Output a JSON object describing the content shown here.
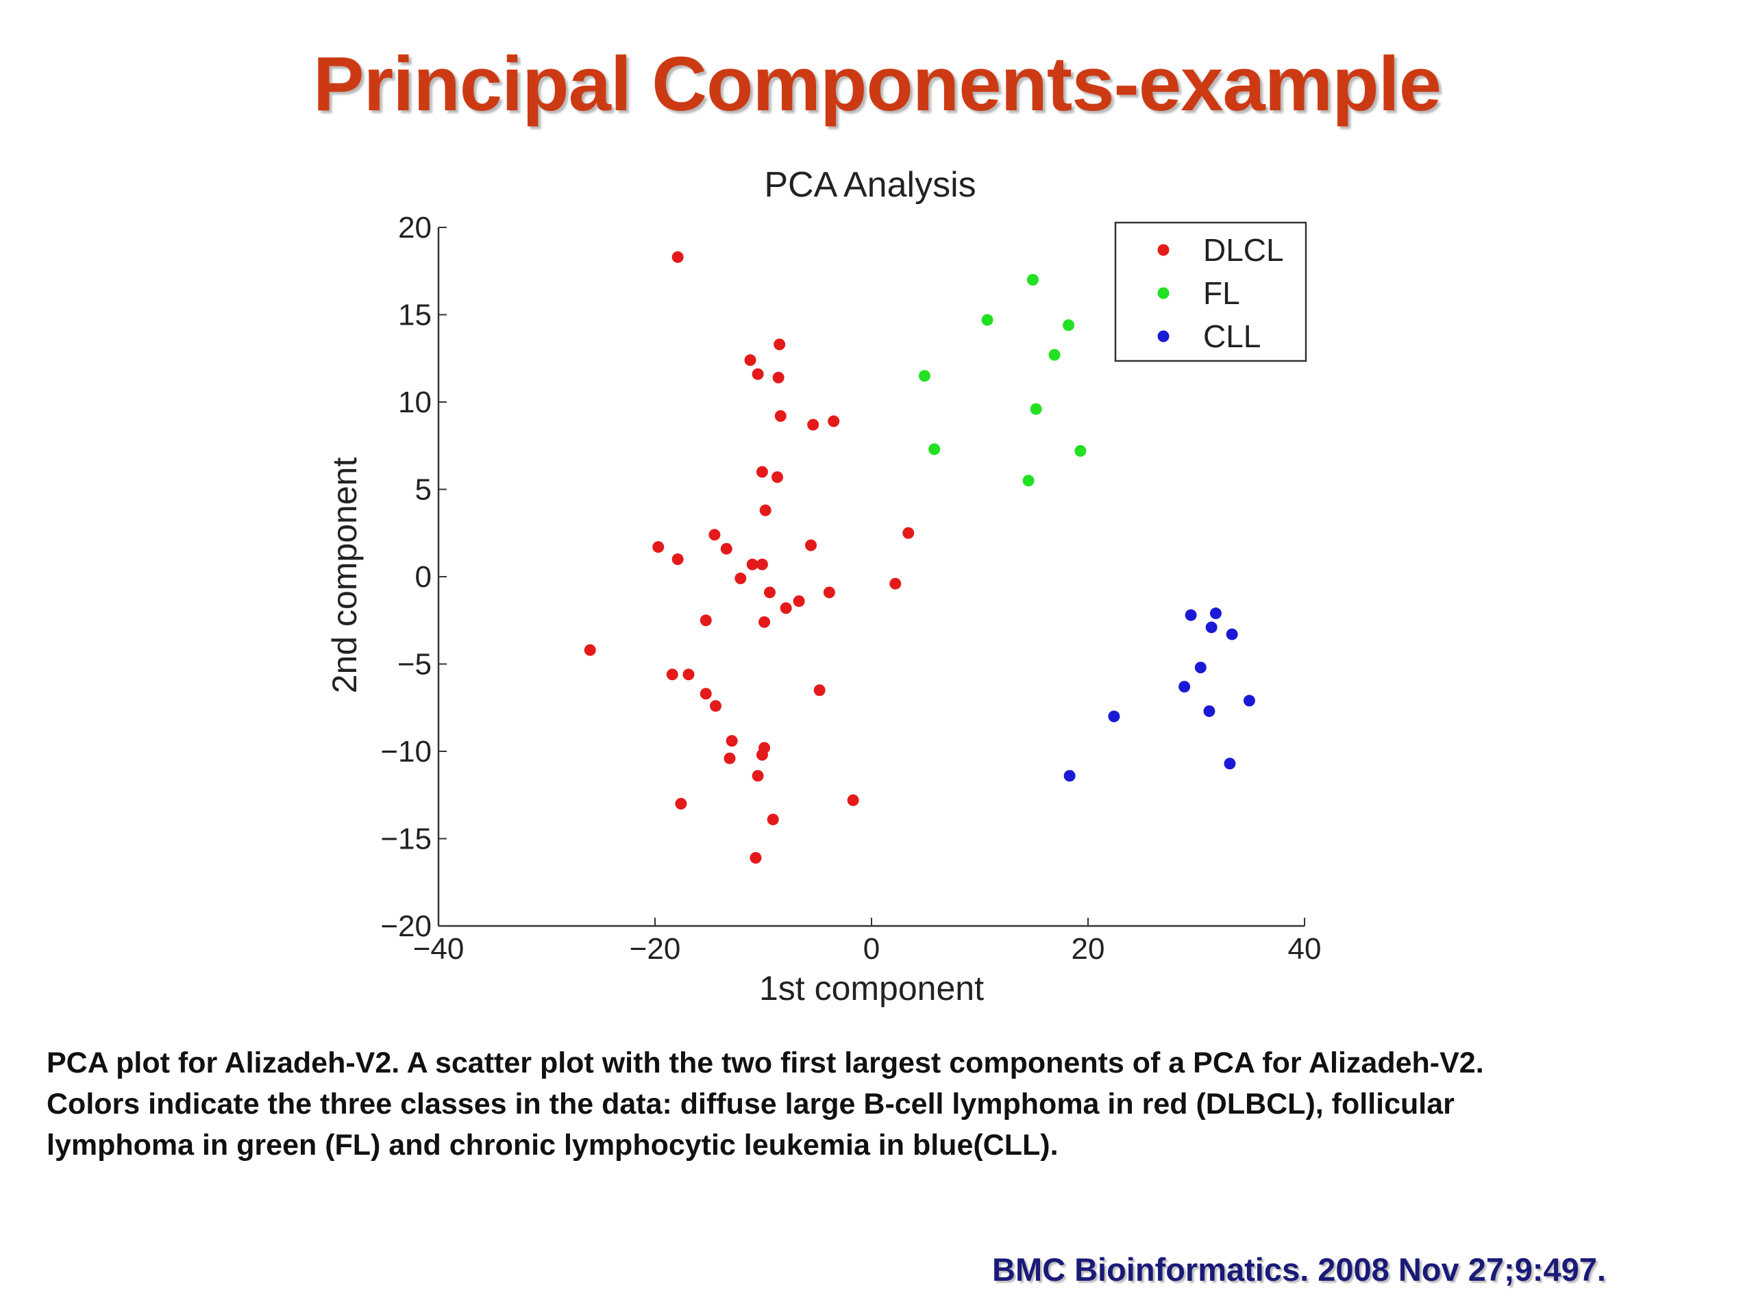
{
  "slide": {
    "title": "Principal Components-example",
    "caption_lines": [
      "PCA plot for Alizadeh-V2. A scatter plot with the two first largest components of a PCA for Alizadeh-V2.",
      "Colors indicate the three classes in the data: diffuse large B-cell lymphoma in red (DLBCL), follicular",
      "lymphoma in green (FL) and chronic lymphocytic leukemia in blue(CLL)."
    ],
    "source": "BMC Bioinformatics. 2008 Nov 27;9:497.",
    "title_color": "#cc3a14",
    "source_color": "#1a1a78"
  },
  "chart_data": {
    "type": "scatter",
    "title": "PCA Analysis",
    "xlabel": "1st component",
    "ylabel": "2nd component",
    "xlim": [
      -40,
      40
    ],
    "ylim": [
      -20,
      20
    ],
    "xticks": [
      -40,
      -20,
      0,
      20,
      40
    ],
    "yticks": [
      -20,
      -15,
      -10,
      -5,
      0,
      5,
      10,
      15,
      20
    ],
    "tick_labels_x": [
      "−40",
      "−20",
      "0",
      "20",
      "40"
    ],
    "tick_labels_y": [
      "−20",
      "−15",
      "−10",
      "−5",
      "0",
      "5",
      "10",
      "15",
      "20"
    ],
    "legend_position": "top-right",
    "grid": false,
    "series": [
      {
        "name": "DLCL",
        "color": "#e41a1a",
        "points": [
          [
            -17.9,
            18.3
          ],
          [
            -8.5,
            13.3
          ],
          [
            -11.2,
            12.4
          ],
          [
            -10.5,
            11.6
          ],
          [
            -8.6,
            11.4
          ],
          [
            -8.4,
            9.2
          ],
          [
            -5.4,
            8.7
          ],
          [
            -3.5,
            8.9
          ],
          [
            -10.1,
            6.0
          ],
          [
            -8.7,
            5.7
          ],
          [
            -9.8,
            3.8
          ],
          [
            -14.5,
            2.4
          ],
          [
            -13.4,
            1.6
          ],
          [
            -19.7,
            1.7
          ],
          [
            -17.9,
            1.0
          ],
          [
            -11.0,
            0.7
          ],
          [
            -10.1,
            0.7
          ],
          [
            -12.1,
            -0.1
          ],
          [
            -5.6,
            1.8
          ],
          [
            3.4,
            2.5
          ],
          [
            2.2,
            -0.4
          ],
          [
            -9.4,
            -0.9
          ],
          [
            -3.9,
            -0.9
          ],
          [
            -6.7,
            -1.4
          ],
          [
            -7.9,
            -1.8
          ],
          [
            -15.3,
            -2.5
          ],
          [
            -9.9,
            -2.6
          ],
          [
            -26.0,
            -4.2
          ],
          [
            -18.4,
            -5.6
          ],
          [
            -16.9,
            -5.6
          ],
          [
            -15.3,
            -6.7
          ],
          [
            -14.4,
            -7.4
          ],
          [
            -4.8,
            -6.5
          ],
          [
            -12.9,
            -9.4
          ],
          [
            -9.9,
            -9.8
          ],
          [
            -10.1,
            -10.2
          ],
          [
            -13.1,
            -10.4
          ],
          [
            -10.5,
            -11.4
          ],
          [
            -1.7,
            -12.8
          ],
          [
            -17.6,
            -13.0
          ],
          [
            -9.1,
            -13.9
          ],
          [
            -10.7,
            -16.1
          ]
        ]
      },
      {
        "name": "FL",
        "color": "#22e022",
        "points": [
          [
            14.9,
            17.0
          ],
          [
            10.7,
            14.7
          ],
          [
            18.2,
            14.4
          ],
          [
            16.9,
            12.7
          ],
          [
            4.9,
            11.5
          ],
          [
            15.2,
            9.6
          ],
          [
            5.8,
            7.3
          ],
          [
            19.3,
            7.2
          ],
          [
            14.5,
            5.5
          ]
        ]
      },
      {
        "name": "CLL",
        "color": "#1a1ad6",
        "points": [
          [
            29.5,
            -2.2
          ],
          [
            31.8,
            -2.1
          ],
          [
            31.4,
            -2.9
          ],
          [
            33.3,
            -3.3
          ],
          [
            30.4,
            -5.2
          ],
          [
            28.9,
            -6.3
          ],
          [
            34.9,
            -7.1
          ],
          [
            31.2,
            -7.7
          ],
          [
            22.4,
            -8.0
          ],
          [
            33.1,
            -10.7
          ],
          [
            18.3,
            -11.4
          ]
        ]
      }
    ]
  }
}
